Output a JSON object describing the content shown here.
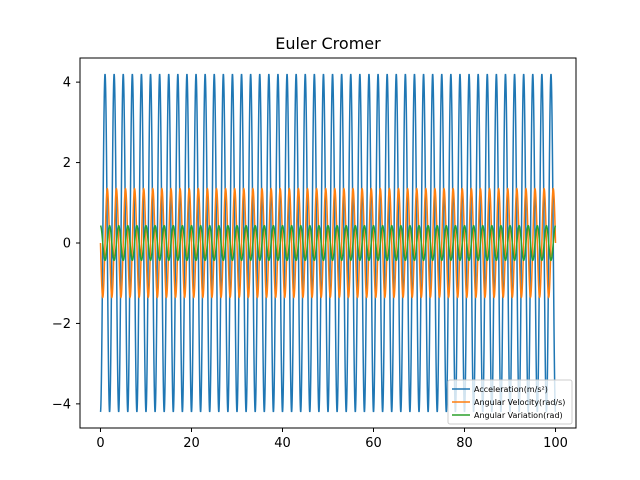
{
  "chart_data": {
    "type": "line",
    "title": "Euler Cromer",
    "xlabel": "",
    "ylabel": "",
    "xlim": [
      -4.5,
      104.5
    ],
    "ylim": [
      -4.6,
      4.6
    ],
    "xticks": [
      0,
      20,
      40,
      60,
      80,
      100
    ],
    "xtick_labels": [
      "0",
      "20",
      "40",
      "60",
      "80",
      "100"
    ],
    "yticks": [
      -4,
      -2,
      0,
      2,
      4
    ],
    "ytick_labels": [
      "−4",
      "−2",
      "0",
      "2",
      "4"
    ],
    "grid": false,
    "legend_position": "lower-right",
    "x_range": [
      0,
      100
    ],
    "period": 2.0,
    "series": [
      {
        "name": "Acceleration(m/s²)",
        "color": "#1f77b4",
        "amplitude": 4.2,
        "form": "-cos"
      },
      {
        "name": "Angular Velocity(rad/s)",
        "color": "#ff7f0e",
        "amplitude": 1.35,
        "form": "-sin"
      },
      {
        "name": "Angular Variation(rad)",
        "color": "#2ca02c",
        "amplitude": 0.43,
        "form": "cos"
      }
    ]
  }
}
